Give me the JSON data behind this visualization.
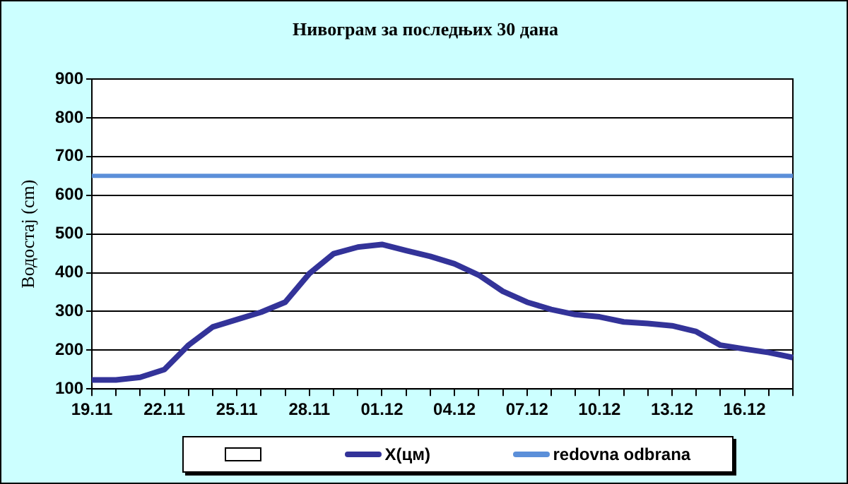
{
  "chart_data": {
    "type": "line",
    "title": "Нивограм за последњих 30 дана",
    "ylabel": "Водостај (cm)",
    "categories": [
      "19.11",
      null,
      null,
      "22.11",
      null,
      null,
      "25.11",
      null,
      null,
      "28.11",
      null,
      null,
      "01.12",
      null,
      null,
      "04.12",
      null,
      null,
      "07.12",
      null,
      null,
      "10.12",
      null,
      null,
      "13.12",
      null,
      null,
      "16.12",
      null,
      null
    ],
    "series": [
      {
        "name": "X(цм)",
        "color": "#333399",
        "values": [
          123,
          123,
          130,
          150,
          213,
          260,
          279,
          298,
          324,
          398,
          449,
          466,
          473,
          457,
          442,
          423,
          394,
          352,
          324,
          305,
          292,
          286,
          273,
          269,
          263,
          248,
          213,
          203,
          194,
          181
        ]
      },
      {
        "name": "redovna odbrana",
        "color": "#5b8fd9",
        "values": [
          650,
          650,
          650,
          650,
          650,
          650,
          650,
          650,
          650,
          650,
          650,
          650,
          650,
          650,
          650,
          650,
          650,
          650,
          650,
          650,
          650,
          650,
          650,
          650,
          650,
          650,
          650,
          650,
          650,
          650
        ]
      }
    ],
    "ylim": [
      100,
      900
    ],
    "yticks": [
      100,
      200,
      300,
      400,
      500,
      600,
      700,
      800,
      900
    ],
    "grid": "y",
    "legend": "bottom",
    "marker": "none",
    "line_style": "solid"
  }
}
